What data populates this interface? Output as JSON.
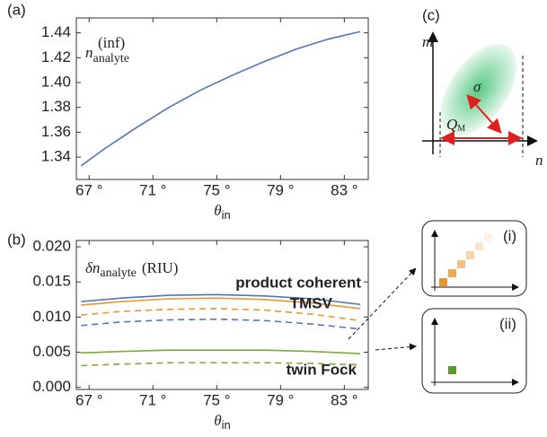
{
  "chart_data": [
    {
      "type": "line",
      "label": "(a)",
      "annotation": {
        "base": "n",
        "sup": "(inf)",
        "sub": "analyte"
      },
      "x_label": {
        "base": "θ",
        "sub": "in"
      },
      "x": [
        66.5,
        68,
        70,
        72,
        74,
        76,
        78,
        80,
        82,
        84
      ],
      "series": [
        {
          "color": "#4f74b8",
          "values": [
            1.333,
            1.347,
            1.364,
            1.38,
            1.394,
            1.406,
            1.417,
            1.427,
            1.435,
            1.441
          ]
        }
      ],
      "xlim": [
        66.2,
        84.5
      ],
      "xticks": [
        {
          "value": 67,
          "label": "67 °"
        },
        {
          "value": 71,
          "label": "71 °"
        },
        {
          "value": 75,
          "label": "75 °"
        },
        {
          "value": 79,
          "label": "79 °"
        },
        {
          "value": 83,
          "label": "83 °"
        }
      ],
      "ylim": [
        1.322,
        1.452
      ],
      "yticks": [
        1.34,
        1.36,
        1.38,
        {
          "value": 1.4,
          "label": "1.40"
        },
        1.42,
        1.44
      ]
    },
    {
      "type": "line",
      "label": "(b)",
      "annotation": {
        "base": "δn",
        "sub": "analyte",
        "unit": "(RIU)"
      },
      "x_label": {
        "base": "θ",
        "sub": "in"
      },
      "x": [
        66.5,
        69,
        72,
        75,
        78,
        81,
        84
      ],
      "series": [
        {
          "name": "product coherent",
          "color": "#4f74b8",
          "values": [
            0.0122,
            0.0127,
            0.0131,
            0.0132,
            0.013,
            0.0126,
            0.0118
          ]
        },
        {
          "name": "TMSV",
          "color": "#e8962e",
          "values": [
            0.0117,
            0.0122,
            0.0126,
            0.0127,
            0.0125,
            0.012,
            0.0112
          ]
        },
        {
          "color": "#e8962e",
          "dash": true,
          "values": [
            0.0103,
            0.0108,
            0.0111,
            0.0112,
            0.011,
            0.0104,
            0.0095
          ]
        },
        {
          "color": "#4f74b8",
          "dash": true,
          "values": [
            0.0088,
            0.0093,
            0.0096,
            0.0097,
            0.0095,
            0.009,
            0.0083
          ]
        },
        {
          "name": "twin Fock",
          "color": "#7aab3a",
          "values": [
            0.0049,
            0.0051,
            0.0053,
            0.0053,
            0.0053,
            0.0051,
            0.0048
          ]
        },
        {
          "color": "#7aab3a",
          "dash": true,
          "values": [
            0.0031,
            0.0033,
            0.0035,
            0.0035,
            0.0035,
            0.0034,
            0.0032
          ]
        }
      ],
      "xlim": [
        66.2,
        84.5
      ],
      "xticks": [
        {
          "value": 67,
          "label": "67 °"
        },
        {
          "value": 71,
          "label": "71 °"
        },
        {
          "value": 75,
          "label": "75 °"
        },
        {
          "value": 79,
          "label": "79 °"
        },
        {
          "value": 83,
          "label": "83 °"
        }
      ],
      "ylim": [
        -0.0003,
        0.0209
      ],
      "yticks": [
        {
          "value": 0,
          "label": "0.000"
        },
        0.005,
        {
          "value": 0.01,
          "label": "0.010"
        },
        0.015,
        {
          "value": 0.02,
          "label": "0.020"
        }
      ]
    }
  ],
  "panel_c": {
    "label": "(c)",
    "y_label": "m",
    "x_label": "n",
    "sigma": "σ",
    "q": {
      "base": "Q",
      "sub": "M"
    }
  },
  "insets": [
    {
      "label": "(i)"
    },
    {
      "label": "(ii)"
    }
  ]
}
